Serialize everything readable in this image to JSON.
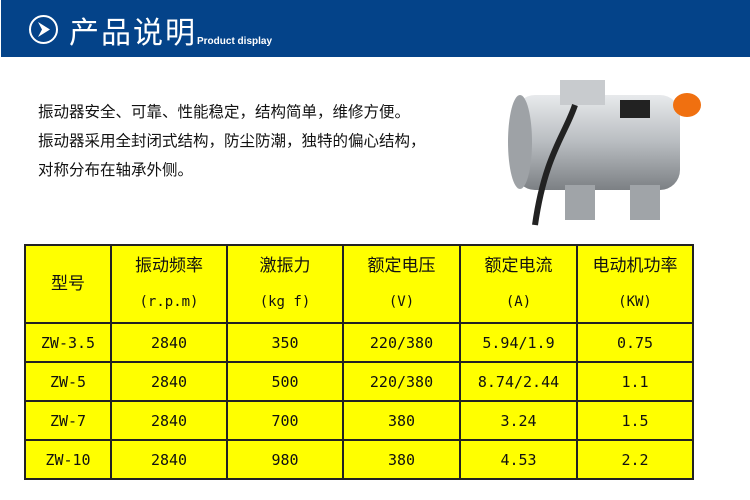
{
  "header": {
    "title": "产品说明",
    "subtitle": "Product display",
    "icon": "chevron-right-circle-icon",
    "color": "#044389"
  },
  "description": [
    "振动器安全、可靠、性能稳定，结构简单，维修方便。",
    "振动器采用全封闭式结构，防尘防潮，独特的偏心结构，",
    "对称分布在轴承外侧。"
  ],
  "table": {
    "columns": [
      {
        "label": "型号",
        "unit": ""
      },
      {
        "label": "振动频率",
        "unit": "(r.p.m)"
      },
      {
        "label": "激振力",
        "unit": "(kg f)"
      },
      {
        "label": "额定电压",
        "unit": "(V)"
      },
      {
        "label": "额定电流",
        "unit": "(A)"
      },
      {
        "label": "电动机功率",
        "unit": "(KW)"
      }
    ],
    "rows": [
      [
        "ZW-3.5",
        "2840",
        "350",
        "220/380",
        "5.94/1.9",
        "0.75"
      ],
      [
        "ZW-5",
        "2840",
        "500",
        "220/380",
        "8.74/2.44",
        "1.1"
      ],
      [
        "ZW-7",
        "2840",
        "700",
        "380",
        "3.24",
        "1.5"
      ],
      [
        "ZW-10",
        "2840",
        "980",
        "380",
        "4.53",
        "2.2"
      ]
    ],
    "background": "#ffff00"
  }
}
